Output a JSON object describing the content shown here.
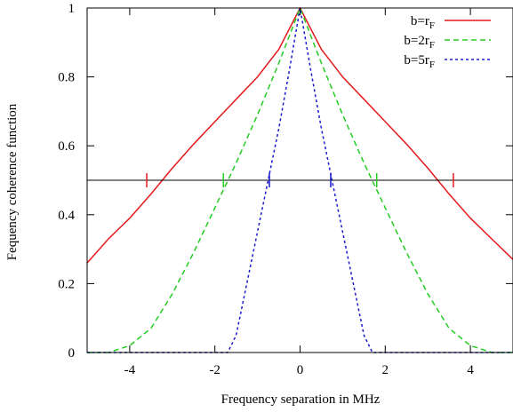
{
  "chart_data": {
    "type": "line",
    "xlabel": "Frequency separation in MHz",
    "ylabel": "Fequency coherence function",
    "xlim": [
      -5,
      5
    ],
    "ylim": [
      0,
      1
    ],
    "xticks": [
      -4,
      -2,
      0,
      2,
      4
    ],
    "xtick_labels": [
      "-4",
      "-2",
      "0",
      "2",
      "4"
    ],
    "yticks": [
      0,
      0.2,
      0.4,
      0.6,
      0.8,
      1
    ],
    "ytick_labels": [
      "0",
      "0.2",
      "0.4",
      "0.6",
      "0.8",
      "1"
    ],
    "grid": false,
    "legend_position": "top-right",
    "reference_line": 0.5,
    "series": [
      {
        "legend_main": "b=r",
        "legend_sub": "F",
        "color": "#e41a1c",
        "dash": "solid",
        "half_width": 3.6,
        "x": [
          -5,
          -4.5,
          -4,
          -3.5,
          -3,
          -2.5,
          -2,
          -1.5,
          -1,
          -0.5,
          0,
          0.5,
          1,
          1.5,
          2,
          2.5,
          3,
          3.5,
          4,
          4.5,
          5
        ],
        "y": [
          0.26,
          0.33,
          0.39,
          0.46,
          0.535,
          0.605,
          0.67,
          0.735,
          0.8,
          0.88,
          1.0,
          0.88,
          0.8,
          0.735,
          0.67,
          0.605,
          0.535,
          0.46,
          0.39,
          0.33,
          0.27
        ]
      },
      {
        "legend_main": "b=2r",
        "legend_sub": "F",
        "color": "#22cc22",
        "dash": "6,4",
        "half_width": 1.8,
        "x": [
          -5,
          -4.5,
          -4,
          -3.5,
          -3,
          -2.5,
          -2,
          -1.5,
          -1,
          -0.5,
          0,
          0.5,
          1,
          1.5,
          2,
          2.5,
          3,
          3.5,
          4,
          4.5,
          5
        ],
        "y": [
          0.0,
          0.0,
          0.02,
          0.07,
          0.17,
          0.29,
          0.42,
          0.55,
          0.69,
          0.84,
          1.0,
          0.84,
          0.69,
          0.55,
          0.42,
          0.29,
          0.17,
          0.07,
          0.02,
          0.0,
          0.0
        ]
      },
      {
        "legend_main": "b=5r",
        "legend_sub": "F",
        "color": "#1a1acc",
        "dash": "3,3",
        "half_width": 0.72,
        "x": [
          -5,
          -2,
          -1.7,
          -1.5,
          -1.25,
          -1.0,
          -0.75,
          -0.5,
          -0.25,
          0,
          0.25,
          0.5,
          0.75,
          1.0,
          1.25,
          1.5,
          1.7,
          2,
          5
        ],
        "y": [
          0.0,
          0.0,
          0.0,
          0.05,
          0.2,
          0.35,
          0.5,
          0.65,
          0.82,
          1.0,
          0.82,
          0.65,
          0.5,
          0.35,
          0.2,
          0.05,
          0.0,
          0.0,
          0.0
        ]
      }
    ]
  }
}
